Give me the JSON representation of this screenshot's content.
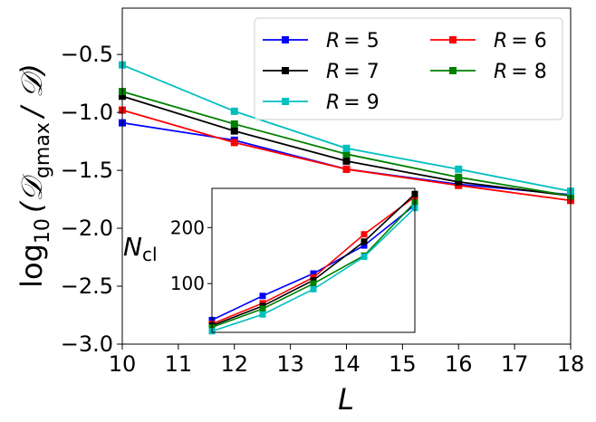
{
  "chart_data": [
    {
      "id": "main",
      "type": "line",
      "xlabel": "L",
      "ylabel_main": "log",
      "ylabel_sub": "10",
      "ylabel_rest": "(𝒟",
      "ylabel_rest_sub": "gmax",
      "ylabel_tail": "/ 𝒟)",
      "xlim": [
        10,
        18
      ],
      "ylim": [
        -3.0,
        -0.1
      ],
      "xticks": [
        10,
        11,
        12,
        13,
        14,
        15,
        16,
        17,
        18
      ],
      "xtick_labels": [
        "10",
        "11",
        "12",
        "13",
        "14",
        "15",
        "16",
        "17",
        "18"
      ],
      "yticks": [
        -3.0,
        -2.5,
        -2.0,
        -1.5,
        -1.0,
        -0.5
      ],
      "ytick_labels": [
        "−3.0",
        "−2.5",
        "−2.0",
        "−1.5",
        "−1.0",
        "−0.5"
      ],
      "x": [
        10,
        12,
        14,
        16,
        18
      ],
      "series": [
        {
          "name": "R = 5",
          "label_var": "R",
          "label_val": "= 5",
          "color": "#0000ff",
          "values": [
            -1.09,
            -1.24,
            -1.49,
            -1.62,
            -1.71
          ]
        },
        {
          "name": "R = 6",
          "label_var": "R",
          "label_val": "= 6",
          "color": "#ff0000",
          "values": [
            -0.98,
            -1.26,
            -1.49,
            -1.63,
            -1.76
          ]
        },
        {
          "name": "R = 7",
          "label_var": "R",
          "label_val": "= 7",
          "color": "#000000",
          "values": [
            -0.86,
            -1.16,
            -1.42,
            -1.6,
            -1.72
          ]
        },
        {
          "name": "R = 8",
          "label_var": "R",
          "label_val": "= 8",
          "color": "#008000",
          "values": [
            -0.82,
            -1.1,
            -1.36,
            -1.56,
            -1.72
          ]
        },
        {
          "name": "R = 9",
          "label_var": "R",
          "label_val": "= 9",
          "color": "#00bfbf",
          "values": [
            -0.59,
            -0.99,
            -1.31,
            -1.49,
            -1.68
          ]
        }
      ],
      "legend": "top-right, 2 columns"
    },
    {
      "id": "inset",
      "type": "line",
      "ylabel_main": "N",
      "ylabel_sub": "cl",
      "xlim": [
        10,
        18
      ],
      "ylim": [
        13,
        270
      ],
      "yticks": [
        100,
        200
      ],
      "ytick_labels": [
        "100",
        "200"
      ],
      "x": [
        10,
        12,
        14,
        16,
        18
      ],
      "series": [
        {
          "name": "R = 5",
          "color": "#0000ff",
          "values": [
            35,
            78,
            118,
            168,
            240
          ]
        },
        {
          "name": "R = 6",
          "color": "#ff0000",
          "values": [
            28,
            65,
            111,
            188,
            255
          ]
        },
        {
          "name": "R = 7",
          "color": "#000000",
          "values": [
            25,
            60,
            106,
            175,
            260
          ]
        },
        {
          "name": "R = 8",
          "color": "#008000",
          "values": [
            22,
            55,
            100,
            150,
            245
          ]
        },
        {
          "name": "R = 9",
          "color": "#00bfbf",
          "values": [
            15,
            45,
            90,
            148,
            235
          ]
        }
      ]
    }
  ]
}
